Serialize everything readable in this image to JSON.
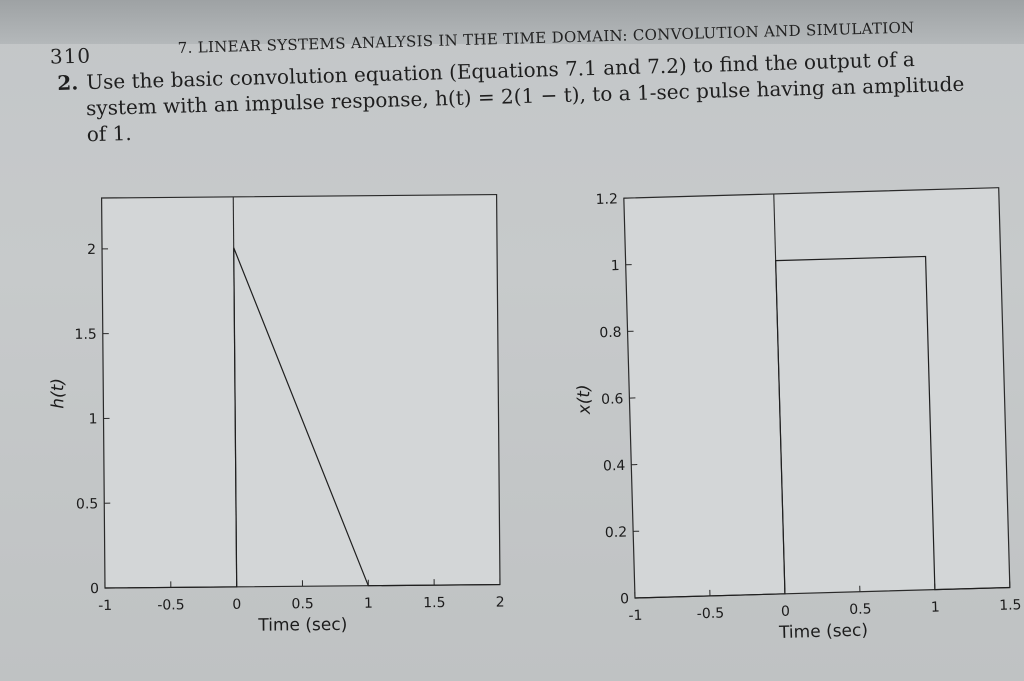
{
  "page": {
    "number": "310",
    "running_head": "7. LINEAR SYSTEMS ANALYSIS IN THE TIME DOMAIN: CONVOLUTION AND SIMULATION"
  },
  "problem": {
    "number": "2.",
    "lines": [
      "Use the basic convolution equation (Equations 7.1 and 7.2) to find the output of a",
      "system with an impulse response, h(t) = 2(1 − t), to a 1-sec pulse having an amplitude",
      "of 1."
    ]
  },
  "chart_data": [
    {
      "type": "line",
      "xlabel": "Time (sec)",
      "ylabel": "h(t)",
      "xlim": [
        -1,
        2
      ],
      "ylim": [
        0,
        2.3
      ],
      "x_ticks": [
        -1,
        -0.5,
        0,
        0.5,
        1,
        1.5,
        2
      ],
      "x_tick_labels": [
        "-1",
        "-0.5",
        "0",
        "0.5",
        "1",
        "1.5",
        "2"
      ],
      "y_ticks": [
        0,
        0.5,
        1,
        1.5,
        2
      ],
      "y_tick_labels": [
        "0",
        "0.5",
        "1",
        "1.5",
        "2"
      ],
      "series": [
        {
          "x": [
            -1,
            0,
            0,
            1,
            2
          ],
          "y": [
            0,
            0,
            2,
            0,
            0
          ]
        }
      ],
      "vertical_line_x": 0,
      "grid": false
    },
    {
      "type": "line",
      "xlabel": "Time (sec)",
      "ylabel": "x(t)",
      "xlim": [
        -1,
        1.5
      ],
      "ylim": [
        0,
        1.2
      ],
      "x_ticks": [
        -1,
        -0.5,
        0,
        0.5,
        1,
        1.5
      ],
      "x_tick_labels": [
        "-1",
        "-0.5",
        "0",
        "0.5",
        "1",
        "1.5"
      ],
      "y_ticks": [
        0,
        0.2,
        0.4,
        0.6,
        0.8,
        1,
        1.2
      ],
      "y_tick_labels": [
        "0",
        "0.2",
        "0.4",
        "0.6",
        "0.8",
        "1",
        "1.2"
      ],
      "series": [
        {
          "x": [
            -1,
            0,
            0,
            1,
            1,
            1.5
          ],
          "y": [
            0,
            0,
            1,
            1,
            0,
            0
          ]
        }
      ],
      "vertical_line_x": 0,
      "grid": false
    }
  ]
}
